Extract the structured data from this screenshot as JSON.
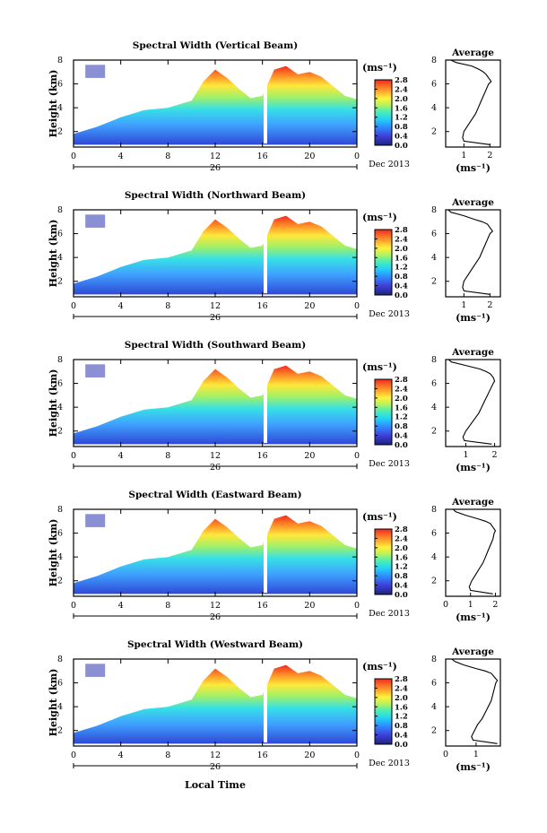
{
  "figure": {
    "xlabel": "Local Time",
    "ylabel": "Height (km)",
    "date_label": "Dec 2013",
    "day_label": "26",
    "units": "(ms⁻¹)",
    "avg_title": "Average",
    "avg_xlabel": "(ms⁻¹)"
  },
  "chart_data": [
    {
      "type": "heatmap",
      "title": "Spectral Width (Vertical Beam)",
      "x_ticks": [
        "0",
        "4",
        "8",
        "12",
        "16",
        "20",
        "0"
      ],
      "xlim": [
        0,
        24
      ],
      "y_ticks": [
        "2",
        "4",
        "6",
        "8"
      ],
      "ylim": [
        0.7,
        8
      ],
      "colorbar_ticks": [
        "0.0",
        "0.4",
        "0.8",
        "1.2",
        "1.6",
        "2.0",
        "2.4",
        "2.8"
      ],
      "colorbar_range": [
        0,
        2.8
      ],
      "avg_profile": {
        "x_ticks": [
          "1",
          "2"
        ],
        "xlim": [
          0.3,
          2.4
        ],
        "height": [
          0.9,
          1.2,
          1.5,
          2,
          2.5,
          3,
          3.5,
          4,
          4.5,
          5,
          5.5,
          6,
          6.2,
          6.5,
          6.8,
          7,
          7.2,
          7.5,
          7.8,
          8
        ],
        "value": [
          2.0,
          1.0,
          0.95,
          1.0,
          1.15,
          1.3,
          1.45,
          1.55,
          1.65,
          1.75,
          1.85,
          1.95,
          2.05,
          1.95,
          1.85,
          1.75,
          1.6,
          1.3,
          0.7,
          0.5
        ]
      }
    },
    {
      "type": "heatmap",
      "title": "Spectral Width (Northward Beam)",
      "x_ticks": [
        "0",
        "4",
        "8",
        "12",
        "16",
        "20",
        "0"
      ],
      "xlim": [
        0,
        24
      ],
      "y_ticks": [
        "2",
        "4",
        "6",
        "8"
      ],
      "ylim": [
        0.7,
        8
      ],
      "colorbar_ticks": [
        "0.0",
        "0.4",
        "0.8",
        "1.2",
        "1.6",
        "2.0",
        "2.4",
        "2.8"
      ],
      "colorbar_range": [
        0,
        2.8
      ],
      "avg_profile": {
        "x_ticks": [
          "1",
          "2"
        ],
        "xlim": [
          0.3,
          2.4
        ],
        "height": [
          0.9,
          1.2,
          1.5,
          2,
          2.5,
          3,
          3.5,
          4,
          4.5,
          5,
          5.5,
          6,
          6.2,
          6.5,
          6.8,
          7,
          7.2,
          7.5,
          7.8,
          8
        ],
        "value": [
          2.0,
          1.0,
          0.95,
          1.0,
          1.15,
          1.3,
          1.45,
          1.6,
          1.7,
          1.8,
          1.9,
          2.0,
          2.1,
          2.0,
          1.9,
          1.7,
          1.4,
          1.0,
          0.5,
          0.4
        ]
      }
    },
    {
      "type": "heatmap",
      "title": "Spectral Width (Southward Beam)",
      "x_ticks": [
        "0",
        "4",
        "8",
        "12",
        "16",
        "20",
        "0"
      ],
      "xlim": [
        0,
        24
      ],
      "y_ticks": [
        "2",
        "4",
        "6",
        "8"
      ],
      "ylim": [
        0.7,
        8
      ],
      "colorbar_ticks": [
        "0.0",
        "0.4",
        "0.8",
        "1.2",
        "1.6",
        "2.0",
        "2.4",
        "2.8"
      ],
      "colorbar_range": [
        0,
        2.8
      ],
      "avg_profile": {
        "x_ticks": [
          "1",
          "2"
        ],
        "xlim": [
          0.3,
          2.2
        ],
        "height": [
          0.9,
          1.2,
          1.5,
          2,
          2.5,
          3,
          3.5,
          4,
          4.5,
          5,
          5.5,
          6,
          6.2,
          6.5,
          6.8,
          7,
          7.2,
          7.5,
          7.8,
          8
        ],
        "value": [
          1.9,
          0.95,
          0.9,
          1.0,
          1.15,
          1.3,
          1.45,
          1.55,
          1.65,
          1.75,
          1.85,
          1.95,
          2.0,
          1.95,
          1.85,
          1.7,
          1.5,
          1.0,
          0.5,
          0.4
        ]
      }
    },
    {
      "type": "heatmap",
      "title": "Spectral Width (Eastward Beam)",
      "x_ticks": [
        "0",
        "4",
        "8",
        "12",
        "16",
        "20",
        "0"
      ],
      "xlim": [
        0,
        24
      ],
      "y_ticks": [
        "2",
        "4",
        "6",
        "8"
      ],
      "ylim": [
        0.7,
        8
      ],
      "colorbar_ticks": [
        "0.0",
        "0.4",
        "0.8",
        "1.2",
        "1.6",
        "2.0",
        "2.4",
        "2.8"
      ],
      "colorbar_range": [
        0,
        2.8
      ],
      "avg_profile": {
        "x_ticks": [
          "0",
          "1",
          "2"
        ],
        "xlim": [
          0,
          2.2
        ],
        "height": [
          0.9,
          1.2,
          1.5,
          2,
          2.5,
          3,
          3.5,
          4,
          4.5,
          5,
          5.5,
          6,
          6.2,
          6.5,
          6.8,
          7,
          7.2,
          7.5,
          7.8,
          8
        ],
        "value": [
          1.9,
          1.0,
          0.95,
          1.05,
          1.2,
          1.35,
          1.5,
          1.6,
          1.7,
          1.8,
          1.9,
          1.95,
          2.0,
          1.9,
          1.8,
          1.6,
          1.3,
          0.8,
          0.4,
          0.3
        ]
      }
    },
    {
      "type": "heatmap",
      "title": "Spectral Width (Westward Beam)",
      "x_ticks": [
        "0",
        "4",
        "8",
        "12",
        "16",
        "20",
        "0"
      ],
      "xlim": [
        0,
        24
      ],
      "y_ticks": [
        "2",
        "4",
        "6",
        "8"
      ],
      "ylim": [
        0.7,
        8
      ],
      "colorbar_ticks": [
        "0.0",
        "0.4",
        "0.8",
        "1.2",
        "1.6",
        "2.0",
        "2.4",
        "2.8"
      ],
      "colorbar_range": [
        0,
        2.8
      ],
      "avg_profile": {
        "x_ticks": [
          "0",
          "1"
        ],
        "xlim": [
          0,
          1.8
        ],
        "height": [
          0.9,
          1.2,
          1.5,
          2,
          2.5,
          3,
          3.5,
          4,
          4.5,
          5,
          5.5,
          6,
          6.2,
          6.5,
          6.8,
          7,
          7.2,
          7.5,
          7.8,
          8
        ],
        "value": [
          1.7,
          0.9,
          0.85,
          0.95,
          1.05,
          1.2,
          1.3,
          1.4,
          1.5,
          1.55,
          1.6,
          1.65,
          1.7,
          1.6,
          1.5,
          1.3,
          1.0,
          0.6,
          0.3,
          0.2
        ]
      }
    }
  ]
}
